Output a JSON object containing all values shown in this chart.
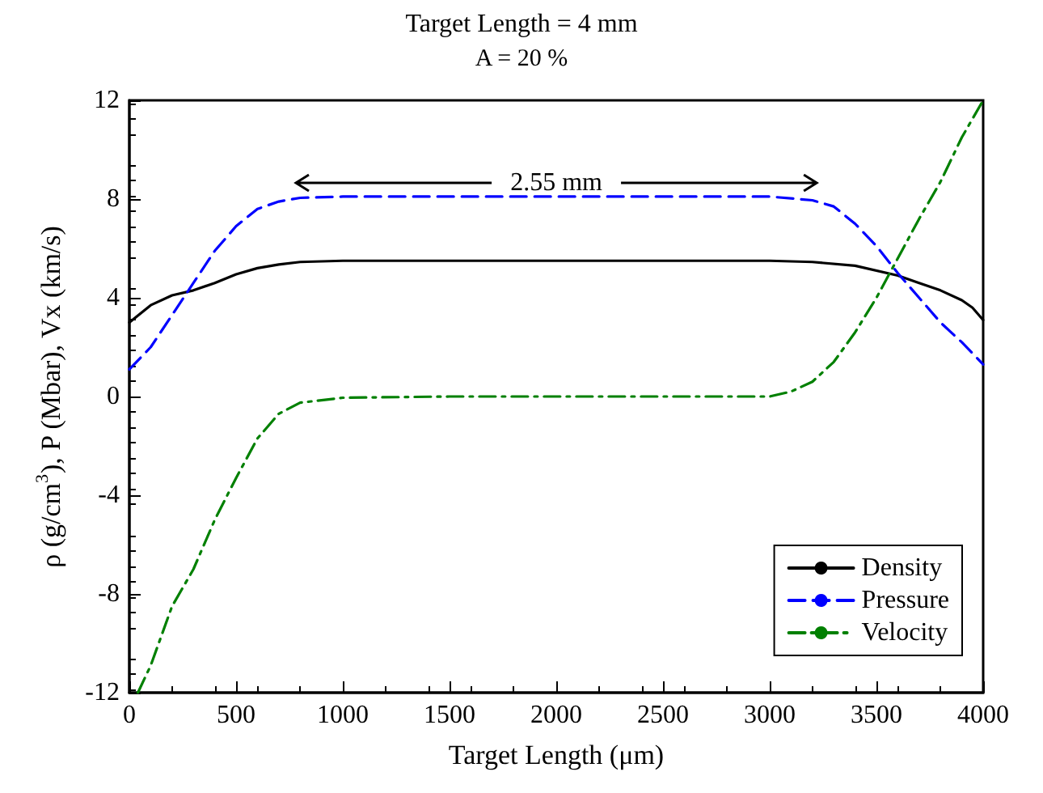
{
  "chart_data": {
    "type": "line",
    "title": "Target Length = 4 mm",
    "subtitle": "A = 20 %",
    "xlabel": "Target Length (μm)",
    "ylabel": "ρ (g/cm$^{3}$), P (Mbar), Vx (km/s)",
    "annotations": [
      "2.55 mm"
    ],
    "series": [
      {
        "name": "Density",
        "color": "#000000",
        "line_style": "solid",
        "x": [
          0,
          100,
          200,
          300,
          400,
          500,
          600,
          700,
          800,
          1000,
          2000,
          3000,
          3200,
          3400,
          3600,
          3700,
          3800,
          3900,
          3950,
          4000
        ],
        "values": [
          3.0,
          3.7,
          4.1,
          4.3,
          4.6,
          4.95,
          5.2,
          5.35,
          5.45,
          5.5,
          5.5,
          5.5,
          5.45,
          5.3,
          4.9,
          4.6,
          4.3,
          3.9,
          3.6,
          3.1
        ]
      },
      {
        "name": "Pressure",
        "color": "#0000ff",
        "line_style": "dashed",
        "x": [
          0,
          100,
          200,
          300,
          400,
          500,
          600,
          700,
          800,
          1000,
          3000,
          3200,
          3300,
          3400,
          3500,
          3600,
          3700,
          3800,
          3900,
          4000
        ],
        "values": [
          1.1,
          2.0,
          3.3,
          4.6,
          5.9,
          6.9,
          7.6,
          7.9,
          8.05,
          8.1,
          8.1,
          7.95,
          7.7,
          7.0,
          6.1,
          5.0,
          4.0,
          3.0,
          2.2,
          1.3
        ]
      },
      {
        "name": "Velocity",
        "color": "#008000",
        "line_style": "dashdot",
        "x": [
          40,
          100,
          200,
          300,
          400,
          500,
          600,
          700,
          800,
          1000,
          1500,
          3000,
          3100,
          3200,
          3300,
          3400,
          3500,
          3600,
          3700,
          3800,
          3900,
          4000
        ],
        "values": [
          -12,
          -10.9,
          -8.5,
          -7.0,
          -5.0,
          -3.3,
          -1.7,
          -0.7,
          -0.25,
          -0.05,
          0,
          0,
          0.2,
          0.6,
          1.4,
          2.6,
          4.0,
          5.6,
          7.2,
          8.7,
          10.5,
          12
        ]
      }
    ],
    "xlim": [
      0,
      4000
    ],
    "xticks": [
      0,
      500,
      1000,
      1500,
      2000,
      2500,
      3000,
      3500,
      4000
    ],
    "ylim": [
      -12,
      12
    ],
    "yticks": [
      -12,
      -8,
      -4,
      0,
      4,
      8,
      12
    ],
    "grid": false,
    "legend": "bottom right",
    "marker": "none"
  }
}
